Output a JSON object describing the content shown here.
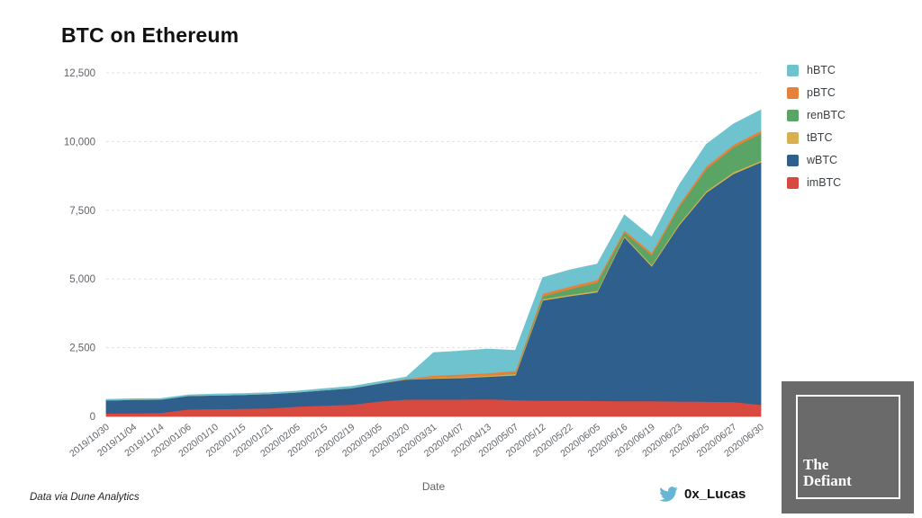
{
  "header": {
    "title": "BTC on Ethereum"
  },
  "chart_data": {
    "type": "area",
    "stacked": true,
    "title": "BTC on Ethereum",
    "xlabel": "Date",
    "ylabel": "",
    "ylim": [
      0,
      12500
    ],
    "yticks": [
      0,
      2500,
      5000,
      7500,
      10000,
      12500
    ],
    "ytick_labels": [
      "0",
      "2,500",
      "5,000",
      "7,500",
      "10,000",
      "12,500"
    ],
    "grid": "horizontal dashed gridlines",
    "legend_position": "right",
    "legend_top_to_bottom": [
      "hBTC",
      "pBTC",
      "renBTC",
      "tBTC",
      "wBTC",
      "imBTC"
    ],
    "axis_label_color": "#5f6368",
    "categories": [
      "2019/10/30",
      "2019/11/04",
      "2019/11/14",
      "2020/01/06",
      "2020/01/10",
      "2020/01/15",
      "2020/01/21",
      "2020/02/05",
      "2020/02/15",
      "2020/02/19",
      "2020/03/05",
      "2020/03/20",
      "2020/03/31",
      "2020/04/07",
      "2020/04/13",
      "2020/05/07",
      "2020/05/12",
      "2020/05/22",
      "2020/06/05",
      "2020/06/16",
      "2020/06/19",
      "2020/06/23",
      "2020/06/25",
      "2020/06/27",
      "2020/06/30"
    ],
    "series": [
      {
        "name": "imBTC",
        "color": "#d8493f",
        "values": [
          110,
          120,
          130,
          260,
          270,
          280,
          300,
          360,
          400,
          430,
          550,
          620,
          620,
          620,
          630,
          600,
          580,
          580,
          570,
          560,
          560,
          550,
          540,
          530,
          430
        ]
      },
      {
        "name": "wBTC",
        "color": "#2e5f8d",
        "values": [
          480,
          490,
          490,
          490,
          500,
          510,
          520,
          520,
          560,
          600,
          650,
          720,
          760,
          780,
          820,
          900,
          3640,
          3800,
          3950,
          5960,
          4900,
          6400,
          7600,
          8300,
          8820
        ]
      },
      {
        "name": "tBTC",
        "color": "#d8b04f",
        "values": [
          0,
          0,
          0,
          0,
          0,
          0,
          0,
          0,
          0,
          0,
          0,
          10,
          30,
          40,
          40,
          50,
          50,
          50,
          50,
          50,
          60,
          60,
          60,
          60,
          50
        ]
      },
      {
        "name": "renBTC",
        "color": "#5aa465",
        "values": [
          0,
          0,
          0,
          0,
          0,
          0,
          0,
          0,
          0,
          0,
          0,
          0,
          0,
          0,
          0,
          20,
          100,
          200,
          300,
          120,
          350,
          600,
          800,
          900,
          1000
        ]
      },
      {
        "name": "pBTC",
        "color": "#e5813b",
        "values": [
          0,
          0,
          0,
          0,
          0,
          0,
          0,
          0,
          0,
          0,
          0,
          20,
          80,
          90,
          90,
          90,
          100,
          100,
          100,
          90,
          90,
          100,
          100,
          100,
          100
        ]
      },
      {
        "name": "hBTC",
        "color": "#6fc3cf",
        "values": [
          30,
          30,
          30,
          30,
          40,
          40,
          40,
          40,
          50,
          60,
          60,
          60,
          830,
          850,
          870,
          740,
          580,
          600,
          570,
          550,
          560,
          700,
          800,
          750,
          750
        ]
      }
    ]
  },
  "footer": {
    "source_note": "Data via Dune Analytics",
    "twitter_handle": "0x_Lucas",
    "twitter_icon": "twitter-bird-icon"
  },
  "logo": {
    "line1": "The",
    "line2": "Defiant"
  }
}
